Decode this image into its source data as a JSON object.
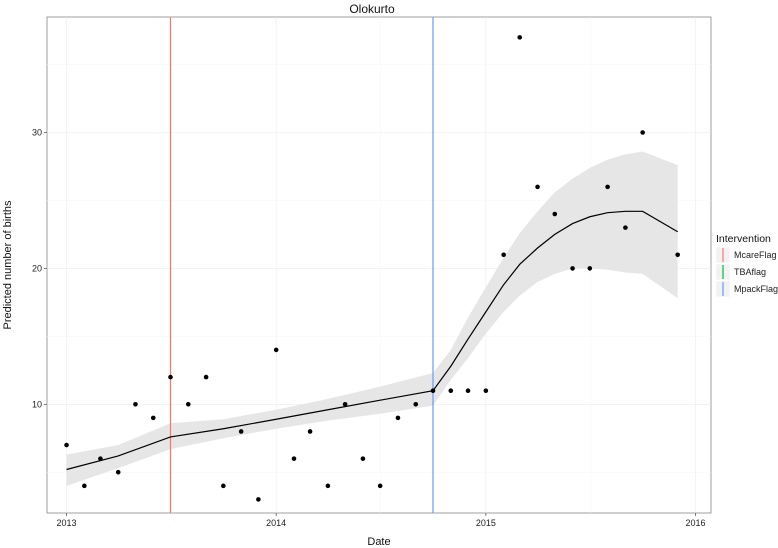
{
  "chart_data": {
    "type": "scatter",
    "title": "Olokurto",
    "xlabel": "Date",
    "ylabel": "Predicted number of births",
    "x_ticks": [
      "2013",
      "2014",
      "2015",
      "2016"
    ],
    "y_ticks": [
      "10",
      "20",
      "30"
    ],
    "xlim": [
      "2012-11-28",
      "2016-01-28"
    ],
    "ylim": [
      2,
      38.5
    ],
    "grid": true,
    "legend_position": "right",
    "legend": {
      "title": "Intervention",
      "entries": [
        {
          "name": "McareFlag",
          "color": "#F8766D"
        },
        {
          "name": "TBAflag",
          "color": "#00BA38"
        },
        {
          "name": "MpackFlag",
          "color": "#619CFF"
        }
      ]
    },
    "vertical_lines": [
      {
        "name": "McareFlag",
        "date": "2013-07-01",
        "color": "#F8766D"
      },
      {
        "name": "MpackFlag",
        "date": "2014-10-01",
        "color": "#619CFF"
      }
    ],
    "points": [
      {
        "date": "2013-01-01",
        "births": 7
      },
      {
        "date": "2013-02-01",
        "births": 4
      },
      {
        "date": "2013-03-01",
        "births": 6
      },
      {
        "date": "2013-04-01",
        "births": 5
      },
      {
        "date": "2013-05-01",
        "births": 10
      },
      {
        "date": "2013-06-01",
        "births": 9
      },
      {
        "date": "2013-07-01",
        "births": 12
      },
      {
        "date": "2013-08-01",
        "births": 10
      },
      {
        "date": "2013-09-01",
        "births": 12
      },
      {
        "date": "2013-10-01",
        "births": 4
      },
      {
        "date": "2013-11-01",
        "births": 8
      },
      {
        "date": "2013-12-01",
        "births": 3
      },
      {
        "date": "2014-01-01",
        "births": 14
      },
      {
        "date": "2014-02-01",
        "births": 6
      },
      {
        "date": "2014-03-01",
        "births": 8
      },
      {
        "date": "2014-04-01",
        "births": 4
      },
      {
        "date": "2014-05-01",
        "births": 10
      },
      {
        "date": "2014-06-01",
        "births": 6
      },
      {
        "date": "2014-07-01",
        "births": 4
      },
      {
        "date": "2014-08-01",
        "births": 9
      },
      {
        "date": "2014-09-01",
        "births": 10
      },
      {
        "date": "2014-10-01",
        "births": 11
      },
      {
        "date": "2014-11-01",
        "births": 11
      },
      {
        "date": "2014-12-01",
        "births": 11
      },
      {
        "date": "2015-01-01",
        "births": 11
      },
      {
        "date": "2015-02-01",
        "births": 21
      },
      {
        "date": "2015-03-01",
        "births": 37
      },
      {
        "date": "2015-04-01",
        "births": 26
      },
      {
        "date": "2015-05-01",
        "births": 24
      },
      {
        "date": "2015-06-01",
        "births": 20
      },
      {
        "date": "2015-07-01",
        "births": 20
      },
      {
        "date": "2015-08-01",
        "births": 26
      },
      {
        "date": "2015-09-01",
        "births": 23
      },
      {
        "date": "2015-10-01",
        "births": 30
      },
      {
        "date": "2015-12-01",
        "births": 21
      }
    ],
    "fit": [
      {
        "date": "2013-01-01",
        "y": 5.2,
        "lower": 4.0,
        "upper": 6.3
      },
      {
        "date": "2013-04-01",
        "y": 6.2,
        "lower": 5.3,
        "upper": 7.0
      },
      {
        "date": "2013-07-01",
        "y": 7.6,
        "lower": 6.7,
        "upper": 8.6
      },
      {
        "date": "2013-10-01",
        "y": 8.2,
        "lower": 7.5,
        "upper": 8.9
      },
      {
        "date": "2014-01-01",
        "y": 8.9,
        "lower": 8.2,
        "upper": 9.6
      },
      {
        "date": "2014-04-01",
        "y": 9.6,
        "lower": 8.8,
        "upper": 10.4
      },
      {
        "date": "2014-07-01",
        "y": 10.3,
        "lower": 9.3,
        "upper": 11.3
      },
      {
        "date": "2014-10-01",
        "y": 11.0,
        "lower": 9.9,
        "upper": 12.3
      },
      {
        "date": "2014-11-01",
        "y": 12.8,
        "lower": 11.8,
        "upper": 14.0
      },
      {
        "date": "2014-12-01",
        "y": 14.8,
        "lower": 13.4,
        "upper": 16.4
      },
      {
        "date": "2015-01-01",
        "y": 16.8,
        "lower": 15.2,
        "upper": 18.6
      },
      {
        "date": "2015-02-01",
        "y": 18.8,
        "lower": 16.8,
        "upper": 20.8
      },
      {
        "date": "2015-03-01",
        "y": 20.3,
        "lower": 18.0,
        "upper": 22.6
      },
      {
        "date": "2015-04-01",
        "y": 21.5,
        "lower": 19.0,
        "upper": 24.2
      },
      {
        "date": "2015-05-01",
        "y": 22.5,
        "lower": 19.6,
        "upper": 25.6
      },
      {
        "date": "2015-06-01",
        "y": 23.3,
        "lower": 20.0,
        "upper": 26.6
      },
      {
        "date": "2015-07-01",
        "y": 23.8,
        "lower": 20.0,
        "upper": 27.4
      },
      {
        "date": "2015-08-01",
        "y": 24.1,
        "lower": 19.9,
        "upper": 28.0
      },
      {
        "date": "2015-09-01",
        "y": 24.2,
        "lower": 19.7,
        "upper": 28.4
      },
      {
        "date": "2015-10-01",
        "y": 24.2,
        "lower": 19.6,
        "upper": 28.6
      },
      {
        "date": "2015-12-01",
        "y": 22.7,
        "lower": 17.8,
        "upper": 27.6
      }
    ]
  }
}
